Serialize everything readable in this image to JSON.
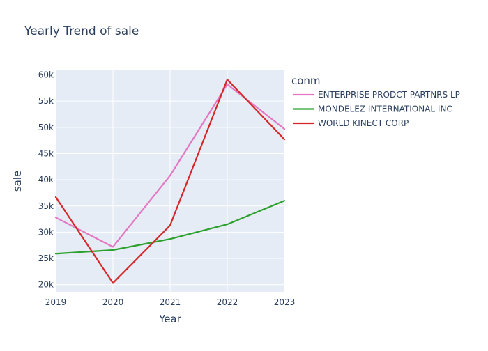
{
  "chart_data": {
    "type": "line",
    "title": "Yearly Trend of sale",
    "xlabel": "Year",
    "ylabel": "sale",
    "x": [
      2019,
      2020,
      2021,
      2022,
      2023
    ],
    "xlim": [
      2019,
      2023
    ],
    "ylim": [
      18500,
      61000
    ],
    "yticks": [
      20000,
      25000,
      30000,
      35000,
      40000,
      45000,
      50000,
      55000,
      60000
    ],
    "ytick_labels": [
      "20k",
      "25k",
      "30k",
      "35k",
      "40k",
      "45k",
      "50k",
      "55k",
      "60k"
    ],
    "grid": true,
    "plot_bgcolor": "#e5ecf6",
    "legend": {
      "title": "conm",
      "placement": "right"
    },
    "series": [
      {
        "name": "ENTERPRISE PRODCT PARTNRS LP",
        "color": "#e377c2",
        "values": [
          32800,
          27200,
          40800,
          58200,
          49700
        ]
      },
      {
        "name": "MONDELEZ INTERNATIONAL INC",
        "color": "#2ca02c",
        "values": [
          25900,
          26600,
          28700,
          31500,
          36000
        ]
      },
      {
        "name": "WORLD KINECT CORP",
        "color": "#d62728",
        "values": [
          36700,
          20300,
          31300,
          59100,
          47700
        ]
      }
    ]
  }
}
